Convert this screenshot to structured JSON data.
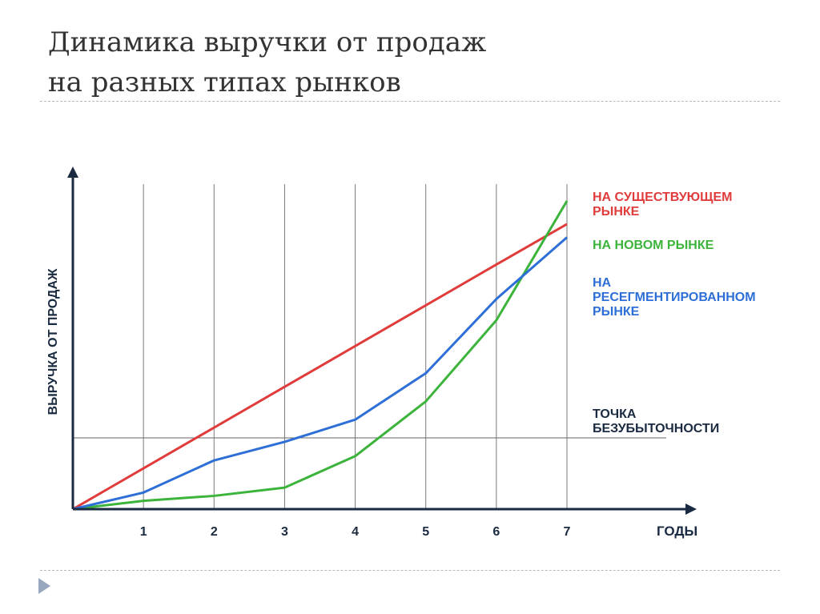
{
  "slide": {
    "title_line1": "Динамика выручки от продаж",
    "title_line2": "на разных типах рынков"
  },
  "chart_data": {
    "type": "line",
    "title": "",
    "xlabel": "ГОДЫ",
    "ylabel": "ВЫРУЧКА ОТ ПРОДАЖ",
    "x_ticks": [
      "1",
      "2",
      "3",
      "4",
      "5",
      "6",
      "7"
    ],
    "x": [
      0,
      1,
      2,
      3,
      4,
      5,
      6,
      7
    ],
    "xlim": [
      0,
      7
    ],
    "ylim": [
      0,
      100
    ],
    "vertical_gridlines": true,
    "horizontal_gridlines": false,
    "series": [
      {
        "name": "НА СУЩЕСТВУЮЩЕМ РЫНКЕ",
        "color": "#e03c3c",
        "values": [
          0,
          12.3,
          24.6,
          36.9,
          49.2,
          61.5,
          73.8,
          86
        ]
      },
      {
        "name": "НА НОВОМ РЫНКЕ",
        "color": "#3cb43c",
        "values": [
          0,
          2.5,
          4,
          6.5,
          16,
          32.5,
          57,
          93
        ]
      },
      {
        "name": "НА РЕСЕГМЕНТИРОВАННОМ РЫНКЕ",
        "color": "#2d6fd6",
        "values": [
          0,
          5,
          14.7,
          20.3,
          27,
          41,
          63.4,
          82
        ]
      }
    ],
    "reference_line": {
      "label": "ТОЧКА БЕЗУБЫТОЧНОСТИ",
      "y": 21.5,
      "color": "#666666"
    },
    "legend_placement": "right",
    "label_color": "#1a2a40"
  }
}
